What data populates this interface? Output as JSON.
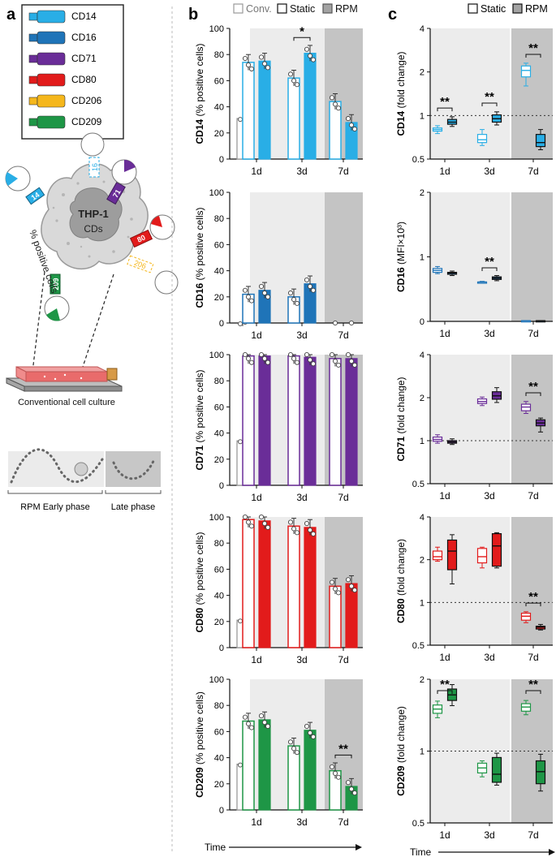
{
  "panel_labels": {
    "a": "a",
    "b": "b",
    "c": "c"
  },
  "panel_a": {
    "legend_markers": [
      {
        "label": "CD14",
        "color": "#29aee6"
      },
      {
        "label": "CD16",
        "color": "#1f74b8"
      },
      {
        "label": "CD71",
        "color": "#6a2d98"
      },
      {
        "label": "CD80",
        "color": "#e21b1b"
      },
      {
        "label": "CD206",
        "color": "#f5b71c"
      },
      {
        "label": "CD209",
        "color": "#1e9646"
      }
    ],
    "cell_labels": {
      "line1": "THP-1",
      "line2": "CDs"
    },
    "receptor_tags": [
      "14",
      "16",
      "71",
      "80",
      "206",
      "209"
    ],
    "percent_label": "% positive cells",
    "flask_label": "Conventional cell culture",
    "phase_labels": {
      "early": "RPM Early phase",
      "late": "Late phase"
    }
  },
  "time_axis_label": "Time",
  "chart_data": [
    {
      "panel": "b",
      "type": "bar",
      "legend": [
        "Conv.",
        "Static",
        "RPM"
      ],
      "categories": [
        "1d",
        "3d",
        "7d"
      ],
      "ylabel_marker": "CD14",
      "ylabel_unit": "(% positive cells)",
      "ylim": [
        0,
        100
      ],
      "yticks": [
        0,
        20,
        40,
        60,
        80,
        100
      ],
      "conv_value": 31,
      "series": [
        {
          "name": "Static",
          "values": [
            74,
            62,
            44
          ]
        },
        {
          "name": "RPM",
          "values": [
            75,
            81,
            28
          ]
        }
      ],
      "significance": [
        {
          "category": "3d",
          "label": "*"
        }
      ]
    },
    {
      "panel": "b",
      "type": "bar",
      "categories": [
        "1d",
        "3d",
        "7d"
      ],
      "ylabel_marker": "CD16",
      "ylabel_unit": "(% positive cells)",
      "ylim": [
        0,
        100
      ],
      "yticks": [
        0,
        20,
        40,
        60,
        80,
        100
      ],
      "conv_value": 0,
      "series": [
        {
          "name": "Static",
          "values": [
            22,
            20,
            0
          ]
        },
        {
          "name": "RPM",
          "values": [
            25,
            30,
            0
          ]
        }
      ],
      "significance": []
    },
    {
      "panel": "b",
      "type": "bar",
      "categories": [
        "1d",
        "3d",
        "7d"
      ],
      "ylabel_marker": "CD71",
      "ylabel_unit": "(% positive cells)",
      "ylim": [
        0,
        100
      ],
      "yticks": [
        0,
        20,
        40,
        60,
        80,
        100
      ],
      "conv_value": 34,
      "series": [
        {
          "name": "Static",
          "values": [
            99,
            99,
            97
          ]
        },
        {
          "name": "RPM",
          "values": [
            99,
            98,
            97
          ]
        }
      ],
      "significance": []
    },
    {
      "panel": "b",
      "type": "bar",
      "categories": [
        "1d",
        "3d",
        "7d"
      ],
      "ylabel_marker": "CD80",
      "ylabel_unit": "(% positive cells)",
      "ylim": [
        0,
        100
      ],
      "yticks": [
        0,
        20,
        40,
        60,
        80,
        100
      ],
      "conv_value": 21,
      "series": [
        {
          "name": "Static",
          "values": [
            98,
            93,
            47
          ]
        },
        {
          "name": "RPM",
          "values": [
            97,
            92,
            49
          ]
        }
      ],
      "significance": []
    },
    {
      "panel": "b",
      "type": "bar",
      "categories": [
        "1d",
        "3d",
        "7d"
      ],
      "ylabel_marker": "CD209",
      "ylabel_unit": "(% positive cells)",
      "ylim": [
        0,
        100
      ],
      "yticks": [
        0,
        20,
        40,
        60,
        80,
        100
      ],
      "conv_value": 35,
      "series": [
        {
          "name": "Static",
          "values": [
            68,
            49,
            30
          ]
        },
        {
          "name": "RPM",
          "values": [
            69,
            61,
            18
          ]
        }
      ],
      "significance": [
        {
          "category": "7d",
          "label": "**"
        }
      ]
    },
    {
      "panel": "c",
      "type": "box",
      "legend": [
        "Static",
        "RPM"
      ],
      "categories": [
        "1d",
        "3d",
        "7d"
      ],
      "ylabel_marker": "CD14",
      "ylabel_unit": "(fold change)",
      "yscale": "log2",
      "ylim": [
        0.5,
        4
      ],
      "yticks": [
        0.5,
        1,
        2,
        4
      ],
      "tick_labels": [
        "0.5",
        "1",
        "2",
        "4"
      ],
      "reference_line": 1,
      "series": [
        {
          "name": "Static",
          "boxes": [
            [
              0.75,
              0.78,
              0.8,
              0.82,
              0.85
            ],
            [
              0.62,
              0.65,
              0.68,
              0.74,
              0.8
            ],
            [
              1.6,
              1.85,
              2.05,
              2.2,
              2.3
            ]
          ]
        },
        {
          "name": "RPM",
          "boxes": [
            [
              0.84,
              0.87,
              0.9,
              0.94,
              0.98
            ],
            [
              0.86,
              0.9,
              0.95,
              1.01,
              1.06
            ],
            [
              0.58,
              0.61,
              0.65,
              0.74,
              0.8
            ]
          ]
        }
      ],
      "significance": [
        {
          "category": "1d",
          "label": "**"
        },
        {
          "category": "3d",
          "label": "**"
        },
        {
          "category": "7d",
          "label": "**"
        }
      ]
    },
    {
      "panel": "c",
      "type": "box",
      "categories": [
        "1d",
        "3d",
        "7d"
      ],
      "ylabel_marker": "CD16",
      "ylabel_unit": "(MFI×10³)",
      "yscale": "linear",
      "ylim": [
        0,
        2
      ],
      "yticks": [
        0,
        1,
        2
      ],
      "tick_labels": [
        "0",
        "1",
        "2"
      ],
      "series": [
        {
          "name": "Static",
          "boxes": [
            [
              0.74,
              0.76,
              0.79,
              0.82,
              0.85
            ],
            [
              0.6,
              0.6,
              0.61,
              0.61,
              0.62
            ],
            [
              0.01,
              0.01,
              0.01,
              0.01,
              0.01
            ]
          ]
        },
        {
          "name": "RPM",
          "boxes": [
            [
              0.71,
              0.73,
              0.75,
              0.76,
              0.78
            ],
            [
              0.63,
              0.65,
              0.67,
              0.69,
              0.71
            ],
            [
              0.01,
              0.01,
              0.01,
              0.01,
              0.01
            ]
          ]
        }
      ],
      "significance": [
        {
          "category": "3d",
          "label": "**"
        }
      ]
    },
    {
      "panel": "c",
      "type": "box",
      "categories": [
        "1d",
        "3d",
        "7d"
      ],
      "ylabel_marker": "CD71",
      "ylabel_unit": "(fold change)",
      "yscale": "log2",
      "ylim": [
        0.5,
        4
      ],
      "yticks": [
        0.5,
        1,
        2,
        4
      ],
      "tick_labels": [
        "0.5",
        "1",
        "2",
        "4"
      ],
      "reference_line": 1,
      "series": [
        {
          "name": "Static",
          "boxes": [
            [
              0.96,
              0.99,
              1.02,
              1.06,
              1.1
            ],
            [
              1.76,
              1.82,
              1.88,
              1.96,
              2.02
            ],
            [
              1.55,
              1.62,
              1.72,
              1.8,
              1.88
            ]
          ]
        },
        {
          "name": "RPM",
          "boxes": [
            [
              0.94,
              0.96,
              0.98,
              1.0,
              1.03
            ],
            [
              1.85,
              1.95,
              2.06,
              2.2,
              2.35
            ],
            [
              1.15,
              1.27,
              1.33,
              1.4,
              1.44
            ]
          ]
        }
      ],
      "significance": [
        {
          "category": "7d",
          "label": "**"
        }
      ]
    },
    {
      "panel": "c",
      "type": "box",
      "categories": [
        "1d",
        "3d",
        "7d"
      ],
      "ylabel_marker": "CD80",
      "ylabel_unit": "(fold change)",
      "yscale": "log2",
      "ylim": [
        0.5,
        4
      ],
      "yticks": [
        0.5,
        1,
        2,
        4
      ],
      "tick_labels": [
        "0.5",
        "1",
        "2",
        "4"
      ],
      "reference_line": 1,
      "series": [
        {
          "name": "Static",
          "boxes": [
            [
              1.95,
              2.0,
              2.1,
              2.3,
              2.45
            ],
            [
              1.75,
              1.9,
              2.1,
              2.4,
              2.45
            ]
          ]
        },
        {
          "name": "RPM",
          "boxes": [
            [
              1.35,
              1.7,
              2.3,
              2.75,
              3.0
            ],
            [
              1.75,
              1.8,
              2.5,
              3.05,
              3.1
            ]
          ]
        }
      ],
      "series_7d": [
        {
          "name": "Static",
          "box": [
            0.72,
            0.75,
            0.8,
            0.84,
            0.86
          ]
        },
        {
          "name": "RPM",
          "box": [
            0.64,
            0.65,
            0.67,
            0.68,
            0.7
          ]
        }
      ],
      "significance": [
        {
          "category": "7d",
          "label": "**"
        }
      ]
    },
    {
      "panel": "c",
      "type": "box",
      "categories": [
        "1d",
        "3d",
        "7d"
      ],
      "ylabel_marker": "CD209",
      "ylabel_unit": "(fold change)",
      "yscale": "log2",
      "ylim": [
        0.5,
        2
      ],
      "yticks": [
        0.5,
        1,
        2
      ],
      "tick_labels": [
        "0.5",
        "1",
        "2"
      ],
      "reference_line": 1,
      "series": [
        {
          "name": "Static",
          "boxes": [
            [
              1.38,
              1.44,
              1.5,
              1.56,
              1.62
            ],
            [
              0.78,
              0.81,
              0.85,
              0.89,
              0.91
            ],
            [
              1.42,
              1.47,
              1.53,
              1.58,
              1.63
            ]
          ]
        },
        {
          "name": "RPM",
          "boxes": [
            [
              1.55,
              1.63,
              1.72,
              1.82,
              1.9
            ],
            [
              0.72,
              0.74,
              0.8,
              0.94,
              0.98
            ],
            [
              0.68,
              0.73,
              0.82,
              0.91,
              0.97
            ]
          ]
        }
      ],
      "significance": [
        {
          "category": "1d",
          "label": "**"
        },
        {
          "category": "7d",
          "label": "**"
        }
      ]
    }
  ]
}
